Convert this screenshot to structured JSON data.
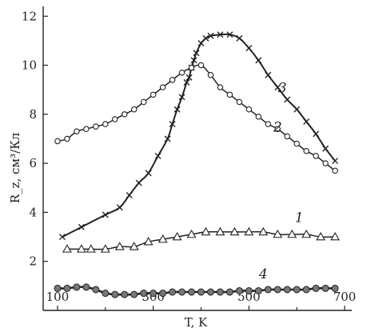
{
  "chart_data": {
    "type": "line",
    "xlabel": "T, K",
    "ylabel": "R_z, см³/Кл",
    "xlim": [
      70,
      715
    ],
    "ylim": [
      0,
      12.4
    ],
    "xticks": [
      100,
      300,
      500,
      700
    ],
    "yticks": [
      2,
      4,
      6,
      8,
      10,
      12
    ],
    "xminor": [
      200,
      400,
      600
    ],
    "grid": false,
    "series": [
      {
        "name": "3",
        "marker": "x",
        "x": [
          110,
          150,
          200,
          230,
          250,
          270,
          290,
          310,
          330,
          340,
          350,
          360,
          370,
          375,
          380,
          385,
          390,
          400,
          410,
          420,
          440,
          460,
          480,
          500,
          520,
          540,
          560,
          580,
          600,
          620,
          640,
          660,
          680
        ],
        "y": [
          3.0,
          3.4,
          3.9,
          4.2,
          4.7,
          5.2,
          5.6,
          6.3,
          7.0,
          7.6,
          8.2,
          8.7,
          9.3,
          9.5,
          9.9,
          10.2,
          10.5,
          10.9,
          11.1,
          11.2,
          11.25,
          11.25,
          11.1,
          10.7,
          10.2,
          9.6,
          9.1,
          8.6,
          8.2,
          7.7,
          7.2,
          6.6,
          6.1
        ]
      },
      {
        "name": "2",
        "marker": "circle",
        "x": [
          100,
          120,
          140,
          160,
          180,
          200,
          220,
          240,
          260,
          280,
          300,
          320,
          340,
          360,
          380,
          400,
          420,
          440,
          460,
          480,
          500,
          520,
          540,
          560,
          580,
          600,
          620,
          640,
          660,
          680
        ],
        "y": [
          6.9,
          7.0,
          7.3,
          7.4,
          7.5,
          7.6,
          7.8,
          8.0,
          8.2,
          8.5,
          8.8,
          9.1,
          9.4,
          9.7,
          9.9,
          10.0,
          9.6,
          9.1,
          8.8,
          8.5,
          8.2,
          7.9,
          7.6,
          7.4,
          7.1,
          6.8,
          6.5,
          6.3,
          6.0,
          5.7
        ]
      },
      {
        "name": "1",
        "marker": "triangle",
        "x": [
          120,
          150,
          170,
          200,
          230,
          260,
          290,
          320,
          350,
          380,
          410,
          440,
          470,
          500,
          530,
          560,
          590,
          620,
          650,
          680
        ],
        "y": [
          2.5,
          2.5,
          2.5,
          2.5,
          2.6,
          2.6,
          2.8,
          2.9,
          3.0,
          3.1,
          3.2,
          3.2,
          3.2,
          3.2,
          3.2,
          3.1,
          3.1,
          3.1,
          3.0,
          3.0
        ]
      },
      {
        "name": "4",
        "marker": "dot",
        "x": [
          100,
          120,
          140,
          160,
          180,
          200,
          220,
          240,
          260,
          280,
          300,
          320,
          340,
          360,
          380,
          400,
          420,
          440,
          460,
          480,
          500,
          520,
          540,
          560,
          580,
          600,
          620,
          640,
          660,
          680
        ],
        "y": [
          0.9,
          0.9,
          0.95,
          0.95,
          0.85,
          0.7,
          0.65,
          0.65,
          0.65,
          0.7,
          0.7,
          0.7,
          0.75,
          0.75,
          0.75,
          0.75,
          0.75,
          0.75,
          0.75,
          0.8,
          0.8,
          0.8,
          0.85,
          0.85,
          0.85,
          0.85,
          0.85,
          0.9,
          0.9,
          0.9
        ]
      }
    ],
    "series_labels": [
      {
        "text": "3",
        "at": [
          570,
          8.9
        ]
      },
      {
        "text": "2",
        "at": [
          560,
          7.3
        ]
      },
      {
        "text": "1",
        "at": [
          605,
          3.6
        ]
      },
      {
        "text": "4",
        "at": [
          530,
          1.3
        ]
      }
    ]
  }
}
